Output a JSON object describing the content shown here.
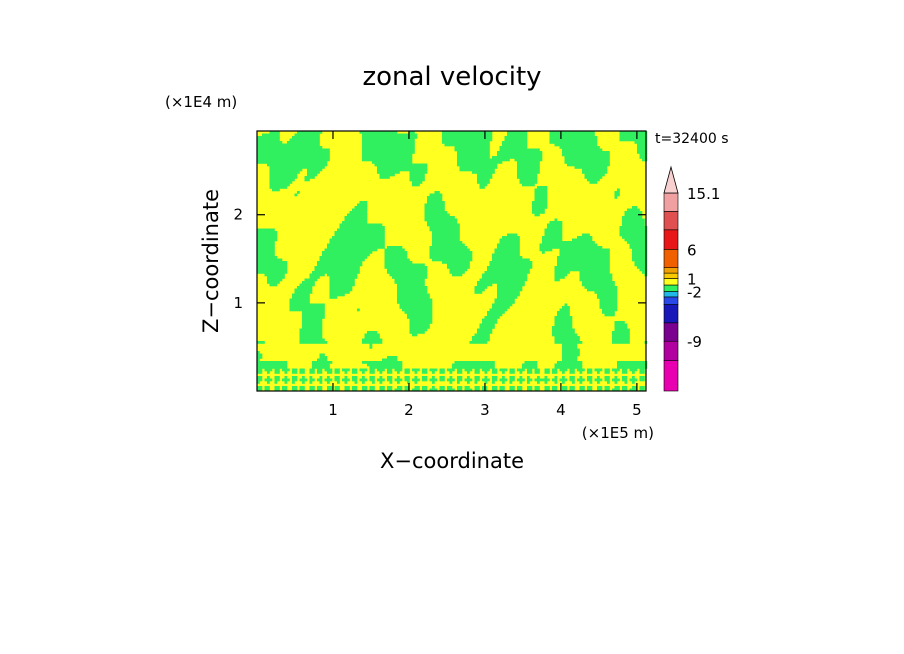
{
  "chart_data": {
    "type": "heatmap",
    "title": "zonal velocity",
    "xlabel": "X−coordinate",
    "ylabel": "Z−coordinate",
    "x_unit": "(×1E5 m)",
    "y_unit": "(×1E4 m)",
    "time_label": "t=32400 s",
    "xlim": [
      0,
      5.12
    ],
    "ylim": [
      0,
      2.95
    ],
    "x_ticks": [
      1,
      2,
      3,
      4,
      5
    ],
    "y_ticks": [
      1,
      2
    ],
    "colorbar": {
      "levels_low_to_high": [
        {
          "label": "",
          "color": "#e800b0"
        },
        {
          "label": "-9",
          "color": "#b000a0"
        },
        {
          "label": "",
          "color": "#7a0090"
        },
        {
          "label": "",
          "color": "#1818b8"
        },
        {
          "label": "",
          "color": "#2848e8"
        },
        {
          "label": "-2",
          "color": "#20b8e8"
        },
        {
          "label": "",
          "color": "#30f060"
        },
        {
          "label": "1",
          "color": "#ffff20"
        },
        {
          "label": "",
          "color": "#f8c800"
        },
        {
          "label": "",
          "color": "#f0a000"
        },
        {
          "label": "6",
          "color": "#f06000"
        },
        {
          "label": "",
          "color": "#e81818"
        },
        {
          "label": "",
          "color": "#e05050"
        },
        {
          "label": "15.1",
          "color": "#f0a0a0"
        },
        {
          "label": "",
          "color": "#f8d0d0"
        }
      ],
      "labels": [
        "15.1",
        "6",
        "1",
        "-2",
        "-9"
      ],
      "extends_above": true
    },
    "dominant_fields": {
      "positive_small": "#ffff20",
      "near_zero": "#30f060"
    }
  }
}
